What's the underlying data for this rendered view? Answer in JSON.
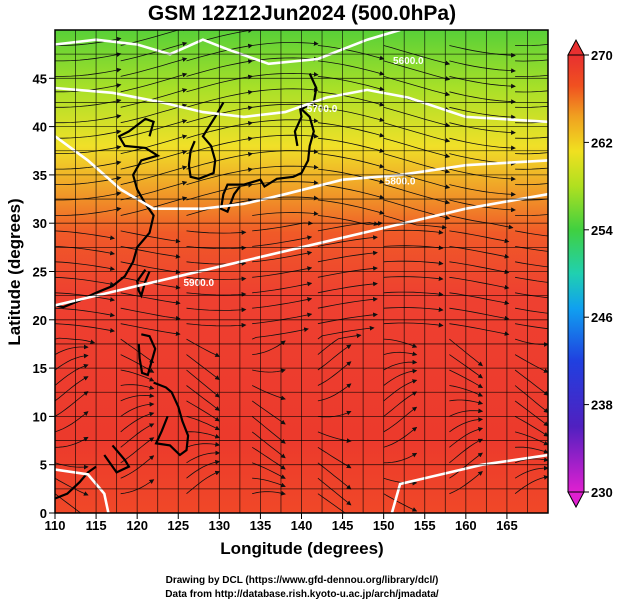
{
  "chart_data": {
    "type": "heatmap",
    "title": "GSM 12Z12Jun2024 (500.0hPa)",
    "xlabel": "Longitude (degrees)",
    "ylabel": "Latitude  (degrees)",
    "xlim": [
      110,
      170
    ],
    "ylim": [
      0,
      50
    ],
    "x_ticks": [
      110,
      115,
      120,
      125,
      130,
      135,
      140,
      145,
      150,
      155,
      160,
      165
    ],
    "y_ticks": [
      0,
      5,
      10,
      15,
      20,
      25,
      30,
      35,
      40,
      45
    ],
    "grid": true,
    "colorbar": {
      "ticks": [
        270,
        262,
        254,
        246,
        238,
        230
      ],
      "range": [
        230,
        270
      ],
      "colors": [
        "#d000d0",
        "#2020c0",
        "#1090ff",
        "#20d0c0",
        "#40d040",
        "#a0e020",
        "#f0e020",
        "#f0a020",
        "#f05020",
        "#e83030"
      ]
    },
    "contours": [
      {
        "label": "5900.0"
      },
      {
        "label": "5800.0"
      },
      {
        "label": "5700.0"
      },
      {
        "label": "5600.0"
      }
    ]
  },
  "credits": {
    "line1": "Drawing by DCL (https://www.gfd-dennou.org/library/dcl/)",
    "line2": "Data from http://database.rish.kyoto-u.ac.jp/arch/jmadata/"
  }
}
